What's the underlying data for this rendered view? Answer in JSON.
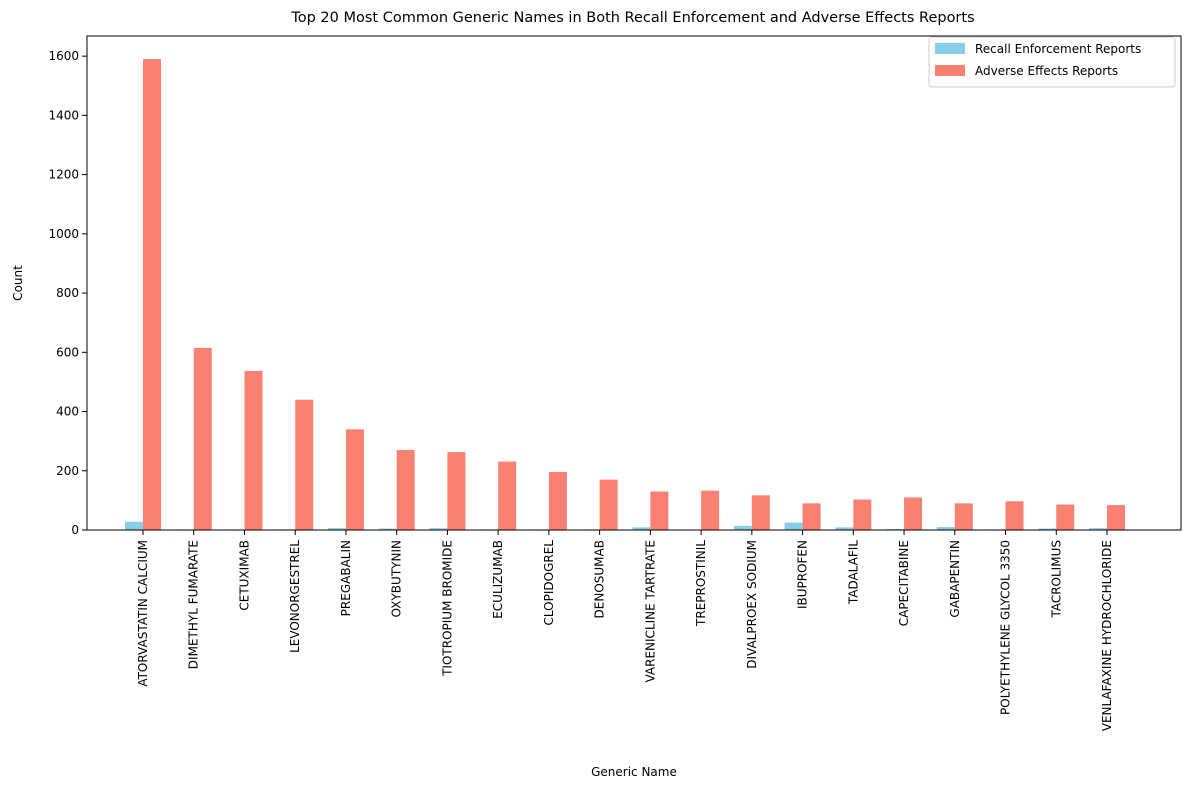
{
  "chart_data": {
    "type": "bar",
    "title": "Top 20 Most Common Generic Names in Both Recall Enforcement and Adverse Effects Reports",
    "xlabel": "Generic Name",
    "ylabel": "Count",
    "ylim": [
      0,
      1668
    ],
    "yticks": [
      0,
      200,
      400,
      600,
      800,
      1000,
      1200,
      1400,
      1600
    ],
    "grid": false,
    "legend_position": "top-right",
    "categories": [
      "ATORVASTATIN CALCIUM",
      "DIMETHYL FUMARATE",
      "CETUXIMAB",
      "LEVONORGESTREL",
      "PREGABALIN",
      "OXYBUTYNIN",
      "TIOTROPIUM BROMIDE",
      "ECULIZUMAB",
      "CLOPIDOGREL",
      "DENOSUMAB",
      "VARENICLINE TARTRATE",
      "TREPROSTINIL",
      "DIVALPROEX SODIUM",
      "IBUPROFEN",
      "TADALAFIL",
      "CAPECITABINE",
      "GABAPENTIN",
      "POLYETHYLENE GLYCOL 3350",
      "TACROLIMUS",
      "VENLAFAXINE HYDROCHLORIDE"
    ],
    "series": [
      {
        "name": "Recall Enforcement Reports",
        "color": "#87ceeb",
        "values": [
          28,
          2,
          2,
          2,
          6,
          5,
          6,
          2,
          2,
          2,
          9,
          1,
          14,
          25,
          9,
          3,
          10,
          2,
          5,
          6
        ]
      },
      {
        "name": "Adverse Effects Reports",
        "color": "#fa8072",
        "values": [
          1590,
          615,
          537,
          440,
          340,
          270,
          263,
          231,
          196,
          170,
          130,
          133,
          117,
          90,
          103,
          110,
          90,
          97,
          86,
          84
        ]
      }
    ]
  }
}
